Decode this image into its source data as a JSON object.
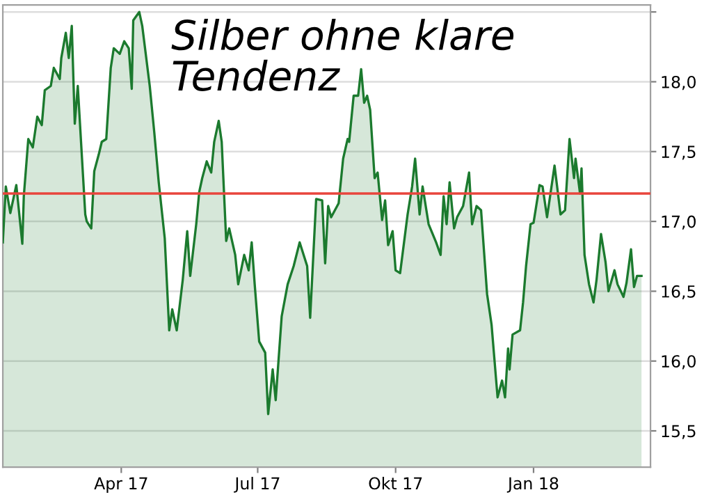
{
  "chart_data": {
    "type": "area",
    "title": "Silber ohne klare Tendenz",
    "x": [
      "2017-01-12",
      "2017-01-14",
      "2017-01-17",
      "2017-01-21",
      "2017-01-25",
      "2017-01-26",
      "2017-01-29",
      "2017-02-01",
      "2017-02-04",
      "2017-02-07",
      "2017-02-09",
      "2017-02-13",
      "2017-02-15",
      "2017-02-19",
      "2017-02-20",
      "2017-02-23",
      "2017-02-25",
      "2017-02-27",
      "2017-03-01",
      "2017-03-03",
      "2017-03-08",
      "2017-03-09",
      "2017-03-12",
      "2017-03-14",
      "2017-03-17",
      "2017-03-19",
      "2017-03-22",
      "2017-03-25",
      "2017-03-27",
      "2017-03-31",
      "2017-04-03",
      "2017-04-06",
      "2017-04-08",
      "2017-04-09",
      "2017-04-13",
      "2017-04-15",
      "2017-04-20",
      "2017-04-23",
      "2017-04-26",
      "2017-04-30",
      "2017-05-03",
      "2017-05-05",
      "2017-05-08",
      "2017-05-12",
      "2017-05-15",
      "2017-05-17",
      "2017-05-21",
      "2017-05-23",
      "2017-05-25",
      "2017-05-28",
      "2017-05-31",
      "2017-06-02",
      "2017-06-05",
      "2017-06-07",
      "2017-06-10",
      "2017-06-12",
      "2017-06-16",
      "2017-06-18",
      "2017-06-22",
      "2017-06-25",
      "2017-06-27",
      "2017-06-29",
      "2017-07-02",
      "2017-07-06",
      "2017-07-08",
      "2017-07-11",
      "2017-07-13",
      "2017-07-17",
      "2017-07-21",
      "2017-07-25",
      "2017-07-29",
      "2017-08-03",
      "2017-08-05",
      "2017-08-09",
      "2017-08-13",
      "2017-08-15",
      "2017-08-17",
      "2017-08-19",
      "2017-08-24",
      "2017-08-27",
      "2017-08-30",
      "2017-08-31",
      "2017-09-03",
      "2017-09-06",
      "2017-09-08",
      "2017-09-10",
      "2017-09-12",
      "2017-09-14",
      "2017-09-17",
      "2017-09-19",
      "2017-09-22",
      "2017-09-24",
      "2017-09-26",
      "2017-09-29",
      "2017-10-01",
      "2017-10-04",
      "2017-10-09",
      "2017-10-12",
      "2017-10-14",
      "2017-10-17",
      "2017-10-19",
      "2017-10-23",
      "2017-10-28",
      "2017-10-31",
      "2017-11-02",
      "2017-11-04",
      "2017-11-06",
      "2017-11-09",
      "2017-11-11",
      "2017-11-15",
      "2017-11-19",
      "2017-11-21",
      "2017-11-24",
      "2017-11-27",
      "2017-12-01",
      "2017-12-04",
      "2017-12-08",
      "2017-12-11",
      "2017-12-13",
      "2017-12-15",
      "2017-12-16",
      "2017-12-18",
      "2017-12-23",
      "2017-12-25",
      "2017-12-27",
      "2017-12-30",
      "2018-01-01",
      "2018-01-05",
      "2018-01-07",
      "2018-01-10",
      "2018-01-15",
      "2018-01-19",
      "2018-01-22",
      "2018-01-25",
      "2018-01-28",
      "2018-01-29",
      "2018-02-01",
      "2018-02-02",
      "2018-02-04",
      "2018-02-07",
      "2018-02-10",
      "2018-02-12",
      "2018-02-15",
      "2018-02-18",
      "2018-02-20",
      "2018-02-24",
      "2018-02-26",
      "2018-03-02",
      "2018-03-04",
      "2018-03-07",
      "2018-03-09",
      "2018-03-11",
      "2018-03-14"
    ],
    "series": [
      {
        "color": "#1b7a2e",
        "values": [
          16.85,
          17.25,
          17.06,
          17.26,
          16.84,
          17.18,
          17.59,
          17.53,
          17.75,
          17.69,
          17.94,
          17.97,
          18.1,
          18.02,
          18.17,
          18.35,
          18.17,
          18.4,
          17.7,
          17.97,
          17.05,
          17.0,
          16.95,
          17.36,
          17.48,
          17.57,
          17.59,
          18.1,
          18.24,
          18.2,
          18.29,
          18.24,
          17.95,
          18.44,
          18.5,
          18.4,
          17.97,
          17.64,
          17.28,
          16.88,
          16.22,
          16.37,
          16.22,
          16.58,
          16.93,
          16.61,
          16.98,
          17.21,
          17.31,
          17.43,
          17.35,
          17.57,
          17.72,
          17.57,
          16.86,
          16.95,
          16.76,
          16.55,
          16.76,
          16.65,
          16.85,
          16.55,
          16.14,
          16.06,
          15.62,
          15.94,
          15.72,
          16.32,
          16.55,
          16.68,
          16.85,
          16.68,
          16.31,
          17.16,
          17.15,
          16.7,
          17.11,
          17.03,
          17.13,
          17.45,
          17.59,
          17.57,
          17.9,
          17.9,
          18.09,
          17.85,
          17.9,
          17.8,
          17.31,
          17.35,
          17.01,
          17.15,
          16.83,
          16.93,
          16.65,
          16.63,
          17.05,
          17.25,
          17.45,
          17.05,
          17.25,
          16.98,
          16.85,
          16.76,
          17.18,
          16.98,
          17.28,
          16.95,
          17.03,
          17.11,
          17.35,
          16.98,
          17.11,
          17.08,
          16.48,
          16.26,
          15.74,
          15.86,
          15.74,
          16.09,
          15.94,
          16.19,
          16.22,
          16.42,
          16.68,
          16.98,
          16.99,
          17.26,
          17.25,
          17.03,
          17.4,
          17.05,
          17.08,
          17.59,
          17.31,
          17.45,
          17.2,
          17.38,
          16.76,
          16.55,
          16.42,
          16.58,
          16.91,
          16.71,
          16.5,
          16.65,
          16.55,
          16.46,
          16.56,
          16.8,
          16.53,
          16.61,
          16.61
        ]
      }
    ],
    "xlim": [
      "2017-01-12",
      "2018-03-20"
    ],
    "xticks": [
      {
        "value": "2017-04-01",
        "label": "Apr 17"
      },
      {
        "value": "2017-07-01",
        "label": "Jul 17"
      },
      {
        "value": "2017-10-01",
        "label": "Okt 17"
      },
      {
        "value": "2018-01-01",
        "label": "Jan 18"
      }
    ],
    "ylim": [
      15.24,
      18.55
    ],
    "yticks": [
      {
        "value": 15.5,
        "label": "15,5"
      },
      {
        "value": 16,
        "label": "16,0"
      },
      {
        "value": 16.5,
        "label": "16,5"
      },
      {
        "value": 17,
        "label": "17,0"
      },
      {
        "value": 17.5,
        "label": "17,5"
      },
      {
        "value": 18,
        "label": "18,0"
      },
      {
        "value": 18.5,
        "label": null
      }
    ],
    "ref_lines": [
      {
        "axis": "y",
        "value": 17.2,
        "color": "#e8453c"
      }
    ],
    "grid": "y",
    "legend": false
  }
}
